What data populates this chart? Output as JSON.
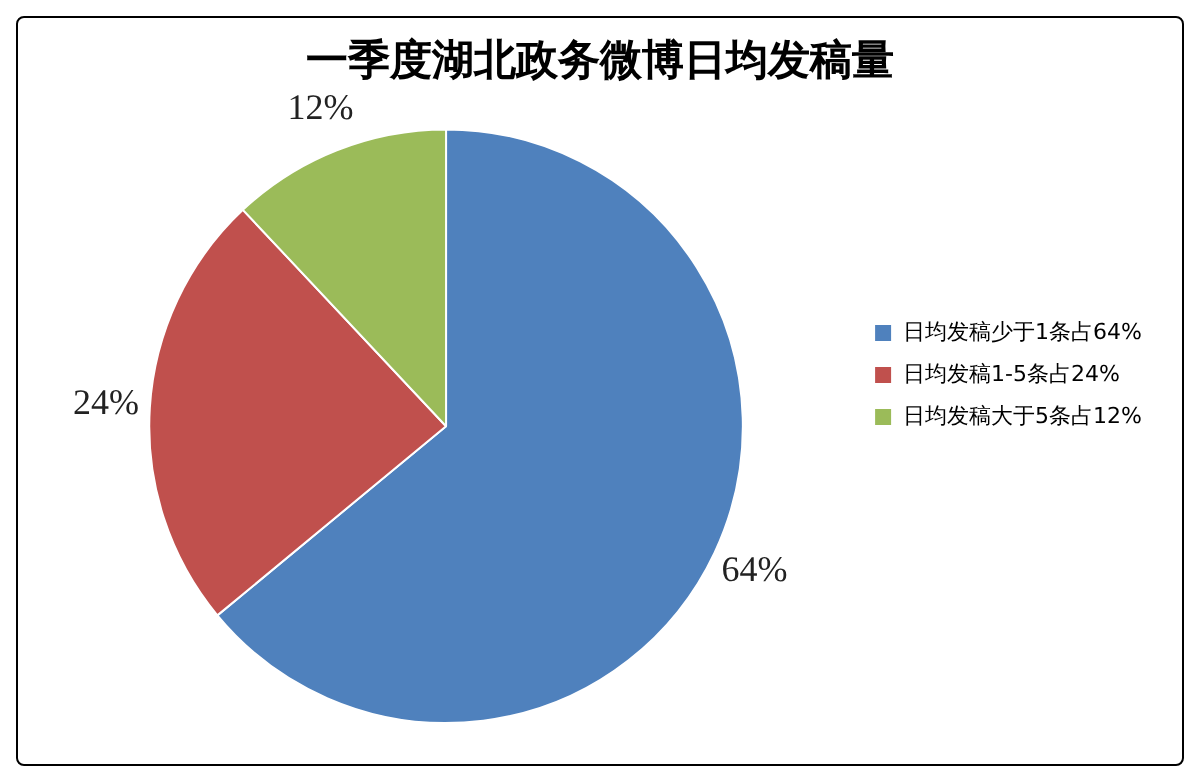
{
  "chart_data": {
    "type": "pie",
    "title": "一季度湖北政务微博日均发稿量",
    "categories": [
      "日均发稿少于1条占64%",
      "日均发稿1-5条占24%",
      "日均发稿大于5条占12%"
    ],
    "values": [
      64,
      24,
      12
    ],
    "colors": [
      "#4f81bd",
      "#c0504d",
      "#9bbb59"
    ],
    "value_labels": [
      "64%",
      "24%",
      "12%"
    ],
    "legend": "right"
  }
}
